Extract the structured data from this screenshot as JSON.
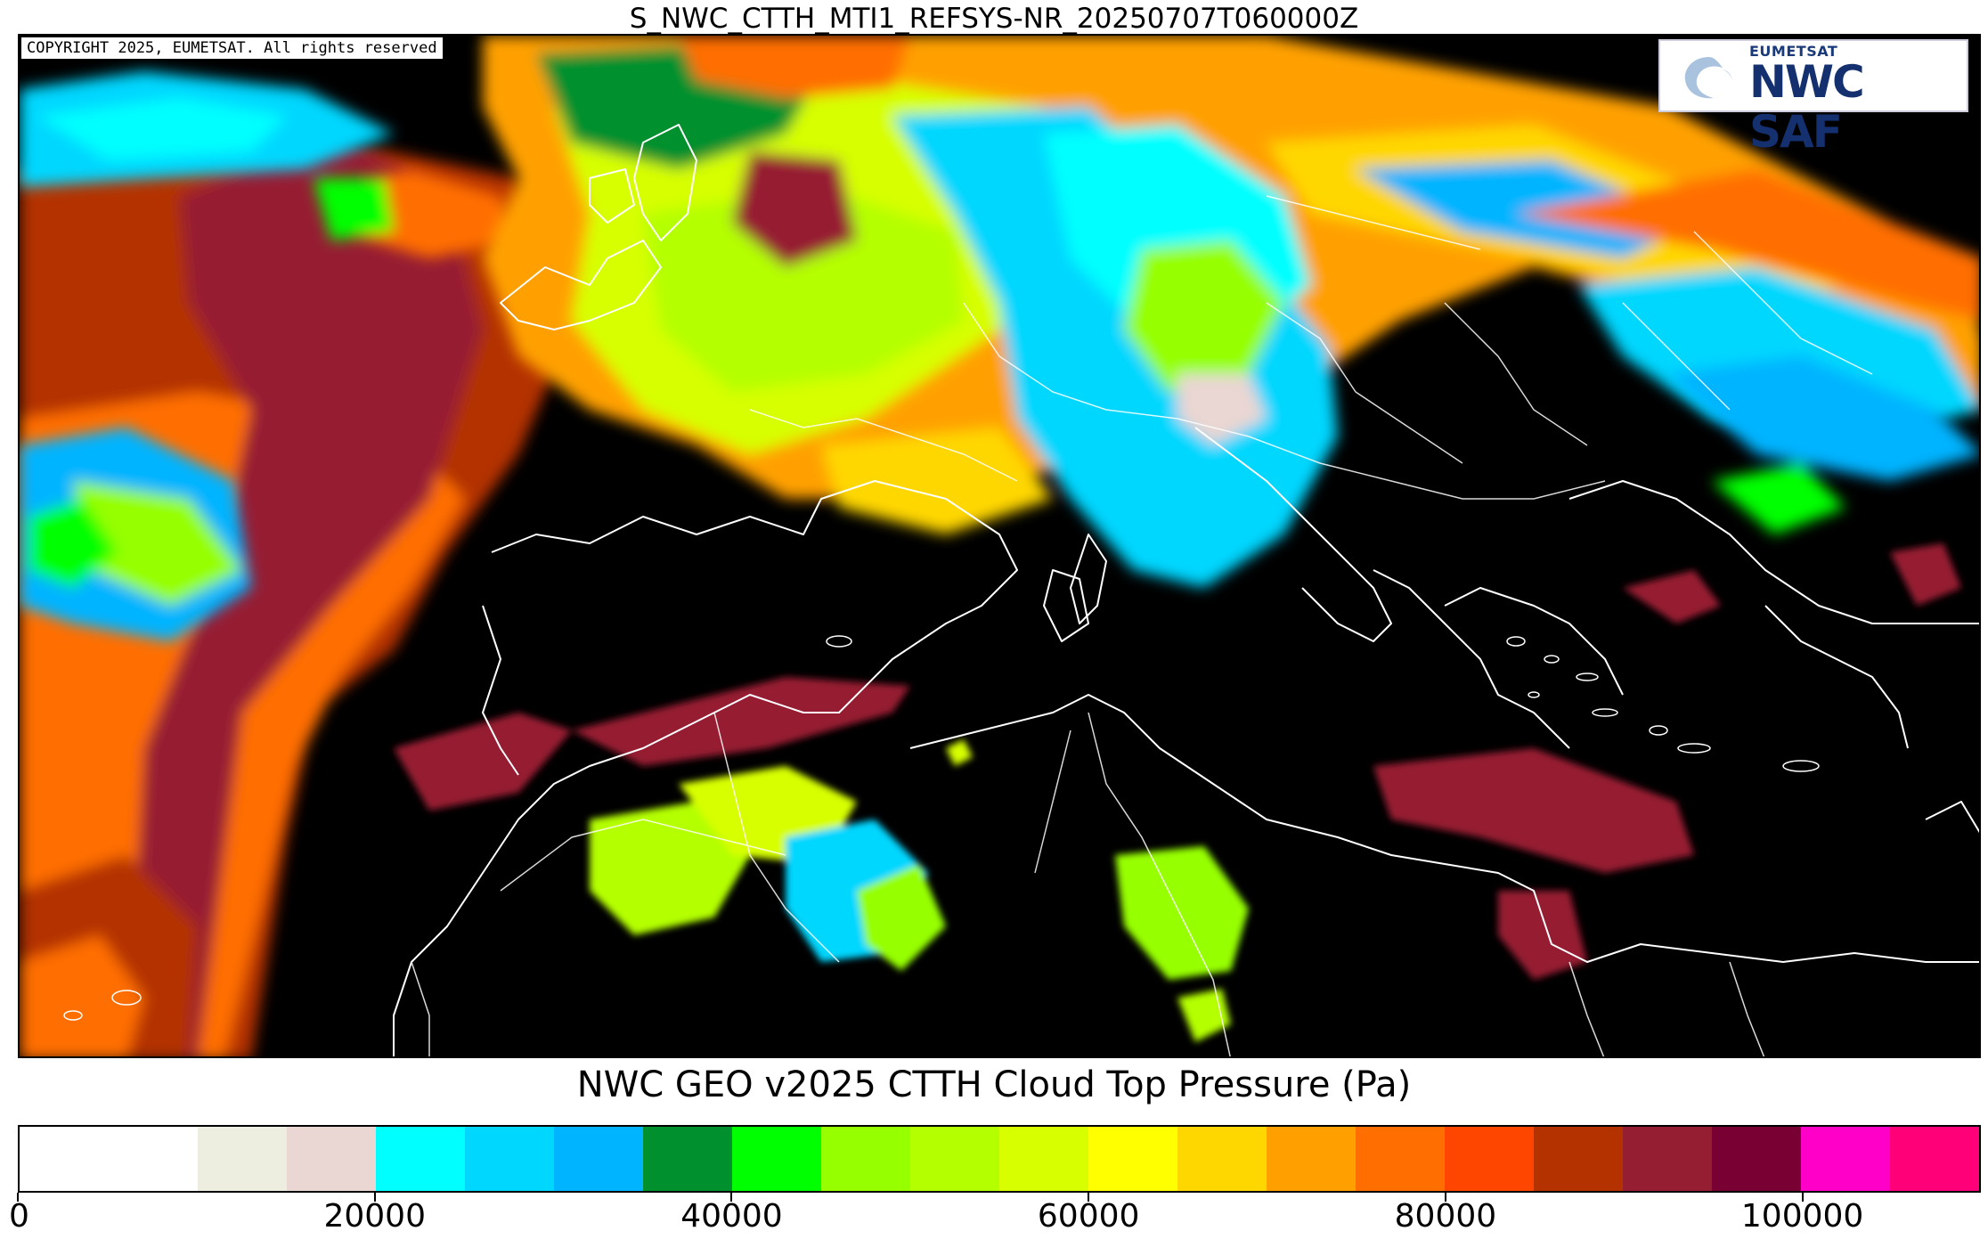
{
  "header": {
    "file_title": "S_NWC_CTTH_MTI1_REFSYS-NR_20250707T060000Z"
  },
  "map": {
    "copyright": "COPYRIGHT 2025, EUMETSAT. All rights reserved",
    "background_color": "#000000",
    "coastline_color": "#ffffff"
  },
  "logo": {
    "top_text": "EUMETSAT",
    "main_text": "NWC SAF",
    "swirl_color": "#a9c3df",
    "text_color": "#14306e"
  },
  "colorbar": {
    "title": "NWC GEO v2025 CTTH Cloud Top Pressure (Pa)",
    "min": 0,
    "max": 110000,
    "segments": [
      {
        "from": 0,
        "to": 10000,
        "color": "#ffffff"
      },
      {
        "from": 10000,
        "to": 15000,
        "color": "#eeeee0"
      },
      {
        "from": 15000,
        "to": 20000,
        "color": "#ead6d2"
      },
      {
        "from": 20000,
        "to": 25000,
        "color": "#00ffff"
      },
      {
        "from": 25000,
        "to": 30000,
        "color": "#00d7ff"
      },
      {
        "from": 30000,
        "to": 35000,
        "color": "#00b4ff"
      },
      {
        "from": 35000,
        "to": 40000,
        "color": "#00902e"
      },
      {
        "from": 40000,
        "to": 45000,
        "color": "#00ff00"
      },
      {
        "from": 45000,
        "to": 50000,
        "color": "#96ff00"
      },
      {
        "from": 50000,
        "to": 55000,
        "color": "#b4ff00"
      },
      {
        "from": 55000,
        "to": 60000,
        "color": "#d7ff00"
      },
      {
        "from": 60000,
        "to": 65000,
        "color": "#ffff00"
      },
      {
        "from": 65000,
        "to": 70000,
        "color": "#ffd700"
      },
      {
        "from": 70000,
        "to": 75000,
        "color": "#ffa000"
      },
      {
        "from": 75000,
        "to": 80000,
        "color": "#ff6e00"
      },
      {
        "from": 80000,
        "to": 85000,
        "color": "#ff4600"
      },
      {
        "from": 85000,
        "to": 90000,
        "color": "#b43200"
      },
      {
        "from": 90000,
        "to": 95000,
        "color": "#961e32"
      },
      {
        "from": 95000,
        "to": 100000,
        "color": "#780032"
      },
      {
        "from": 100000,
        "to": 105000,
        "color": "#ff00c8"
      },
      {
        "from": 105000,
        "to": 110000,
        "color": "#ff0078"
      }
    ],
    "ticks": [
      {
        "value": 0,
        "label": "0"
      },
      {
        "value": 20000,
        "label": "20000"
      },
      {
        "value": 40000,
        "label": "40000"
      },
      {
        "value": 60000,
        "label": "60000"
      },
      {
        "value": 80000,
        "label": "80000"
      },
      {
        "value": 100000,
        "label": "100000"
      }
    ]
  }
}
